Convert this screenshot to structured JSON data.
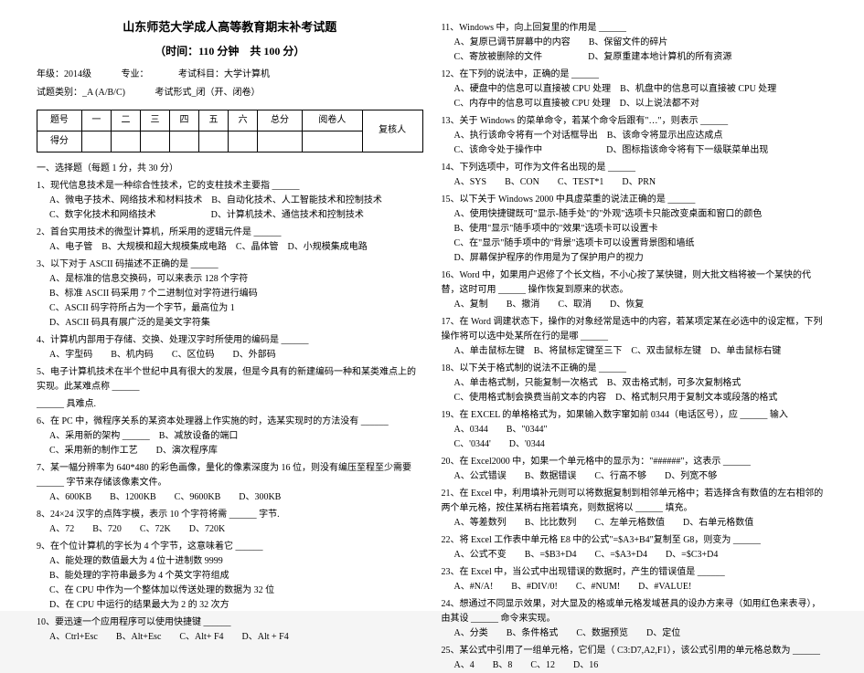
{
  "header": {
    "title": "山东师范大学成人高等教育期末补考试题",
    "subtitle": "（时间：110 分钟　共 100 分）",
    "meta1_year": "年级：2014级",
    "meta1_major": "专业：",
    "meta1_subject": "考试科目：大学计算机",
    "meta2_type": "试题类别：_A (A/B/C)",
    "meta2_form": "考试形式_闭（开、闭卷）"
  },
  "score_table": {
    "r1": [
      "题号",
      "一",
      "二",
      "三",
      "四",
      "五",
      "六",
      "总分",
      "阅卷人",
      ""
    ],
    "r2": [
      "得分",
      "",
      "",
      "",
      "",
      "",
      "",
      "",
      "",
      "复核人"
    ]
  },
  "left": {
    "sec1": "一、选择题（每题 1 分，共 30 分）",
    "q1": "1、现代信息技术是一种综合性技术，它的支柱技术主要指 ______",
    "q1a": "A、微电子技术、网络技术和材料技术　B、自动化技术、人工智能技术和控制技术",
    "q1b": "C、数字化技术和网络技术　　　　　　D、计算机技术、通信技术和控制技术",
    "q2": "2、首台实用技术的微型计算机，所采用的逻辑元件是 ______",
    "q2a": "A、电子管　B、大规模和超大规模集成电路　C、晶体管　D、小规模集成电路",
    "q3": "3、以下对于 ASCII 码描述不正确的是 ______",
    "q3a": "A、是标准的信息交换码，可以来表示 128 个字符",
    "q3b": "B、标准 ASCII 码采用 7 个二进制位对字符进行编码",
    "q3c": "C、ASCII 码字符所占为一个字节，最高位为 1",
    "q3d": "D、ASCII 码具有展广泛的是美文字符集",
    "q4": "4、计算机内部用于存储、交换、处理汉字时所使用的编码是 ______",
    "q4a": "A、字型码　　B、机内码　　C、区位码　　D、外部码",
    "q5": "5、电子计算机技术在半个世纪中具有很大的发展，但是今具有的新建编码一种和某类难点上的实现。此某难点称 ______",
    "q5a": "______ 具难点.",
    "q6": "6、在 PC 中，微程序关系的某资本处理器上作实施的时，选某实现时的方法没有 ______",
    "q6a": "A、采用新的架构 ______　B、减放设备的端口",
    "q6b": "C、采用新的制作工艺　　D、演次程序库",
    "q7": "7、某一幅分辨率为 640*480 的彩色画像，量化的像素深度为 16 位，则没有编压至程至少需要 ______ 字节来存储该像素文件。",
    "q7a": "A、600KB　　B、1200KB　　C、9600KB　　D、300KB",
    "q8": "8、24×24 汉字的点阵字模，表示 10 个字符将需 ______ 字节.",
    "q8a": "A、72　　B、720　　C、72K　　D、720K",
    "q9": "9、在个位计算机的字长为 4 个字节，这意味着它 ______",
    "q9a": "A、能处理的数值最大为 4 位十进制数 9999",
    "q9b": "B、能处理的字符串最多为 4 个英文字符组成",
    "q9c": "C、在 CPU 中作为一个整体加以传送处理的数据为 32 位",
    "q9d": "D、在 CPU 中运行的结果最大为 2 的 32 次方",
    "q10": "10、要迅速一个应用程序可以使用快捷键 ______",
    "q10a": "A、Ctrl+Esc　　B、Alt+Esc　　C、Alt+ F4　　D、Alt + F4"
  },
  "right": {
    "q11": "11、Windows 中，向上回复里的作用是 ______",
    "q11a": "A、复原已调节屏幕中的内容　　B、保留文件的碎片",
    "q11b": "C、寄放被删除的文件　　　　　D、复原重建本地计算机的所有资源",
    "q12": "12、在下列的说法中，正确的是 ______",
    "q12a": "A、硬盘中的信息可以直接被 CPU 处理　B、机盘中的信息可以直接被 CPU 处理",
    "q12b": "C、内存中的信息可以直接被 CPU 处理　D、以上说法都不对",
    "q13": "13、关于 Windows 的菜单命令，若某个命令后跟有\"…\"，则表示 ______",
    "q13a": "A、执行该命令将有一个对话框导出　B、该命令将显示出应达成点",
    "q13b": "C、该命令处于操作中　　　　　　　D、图标指该命令将有下一级联菜单出现",
    "q14": "14、下列选项中，可作为文件名出现的是 ______",
    "q14a": "A、SYS　　B、CON　　C、TEST*1　　D、PRN",
    "q15": "15、以下关于 Windows 2000 中具虚菜重的说法正确的是 ______",
    "q15a": "A、使用快捷键既可\"显示-随手处\"的\"外观\"选项卡只能改变桌面和窗口的颜色",
    "q15b": "B、使用\"显示\"随手项中的\"效果\"选项卡可以设置卡",
    "q15c": "C、在\"显示\"随手项中的\"背景\"选项卡可以设置背景图和墙纸",
    "q15d": "D、屏幕保护程序的作用是为了保护用户的视力",
    "q16": "16、Word 中，如果用户迟修了个长文档，不小心按了某快键，则大批文档将被一个某快的代替，这时可用 ______ 操作恢复到原来的状态。",
    "q16a": "A、复制　　B、撤消　　C、取消　　D、恢复",
    "q17": "17、在 Word 调建状态下，操作的对象经常是选中的内容，若某项定某在必选中的设定框，下列操作将可以选中处某所在行的是哪 ______",
    "q17a": "A、单击鼠标左键　B、将鼠标定键至三下　C、双击鼠标左键　D、单击鼠标右键",
    "q18": "18、以下关于格式制的说法不正确的是 ______",
    "q18a": "A、单击格式制，只能复制一次格式　B、双击格式制，可多次复制格式",
    "q18b": "C、使用格式制会换费当前文本的内容　D、格式制只用于复制文本或段落的格式",
    "q19": "19、在 EXCEL 的单格格式为，如果输入数字窜如前 0344（电话区号），应 ______ 输入",
    "q19a": "A、0344　　B、\"0344\"",
    "q19b": "C、'0344'　　D、'0344",
    "q20": "20、在 Excel2000 中，如果一个单元格中的显示为：\"######\"，这表示 ______",
    "q20a": "A、公式错误　　B、数据错误　　C、行高不够　　D、列宽不够",
    "q21": "21、在 Excel 中，利用填补元则可以将数据复制到相邻单元格中；若选择含有数值的左右相邻的两个单元格，按住某柄右拖若填充，则数据将以 ______ 填充。",
    "q21a": "A、等差数列　　B、比比数列　　C、左单元格数值　　D、右单元格数值",
    "q22": "22、将 Excel 工作表中单元格 E8 中的公式\"=$A3+B4\"复制至 G8，则变为 ______",
    "q22a": "A、公式不变　　B、=$B3+D4　　C、=$A3+D4　　D、=$C3+D4",
    "q23": "23、在 Excel 中，当公式中出现错误的数据时，产生的错误值是 ______",
    "q23a": "A、#N/A!　　B、#DIV/0!　　C、#NUM!　　D、#VALUE!",
    "q24": "24、想通过不同显示效果，对大显及的格或单元格发域甚具的设办方来寻（如用红色来表寻），由其设 ______ 命令来实现。",
    "q24a": "A、分类　　B、条件格式　　C、数据预览　　D、定位",
    "q25": "25、某公式中引用了一组单元格，它们是（ C3:D7,A2,F1），该公式引用的单元格总数为 ______",
    "q25a": "A、4　　B、8　　C、12　　D、16"
  }
}
